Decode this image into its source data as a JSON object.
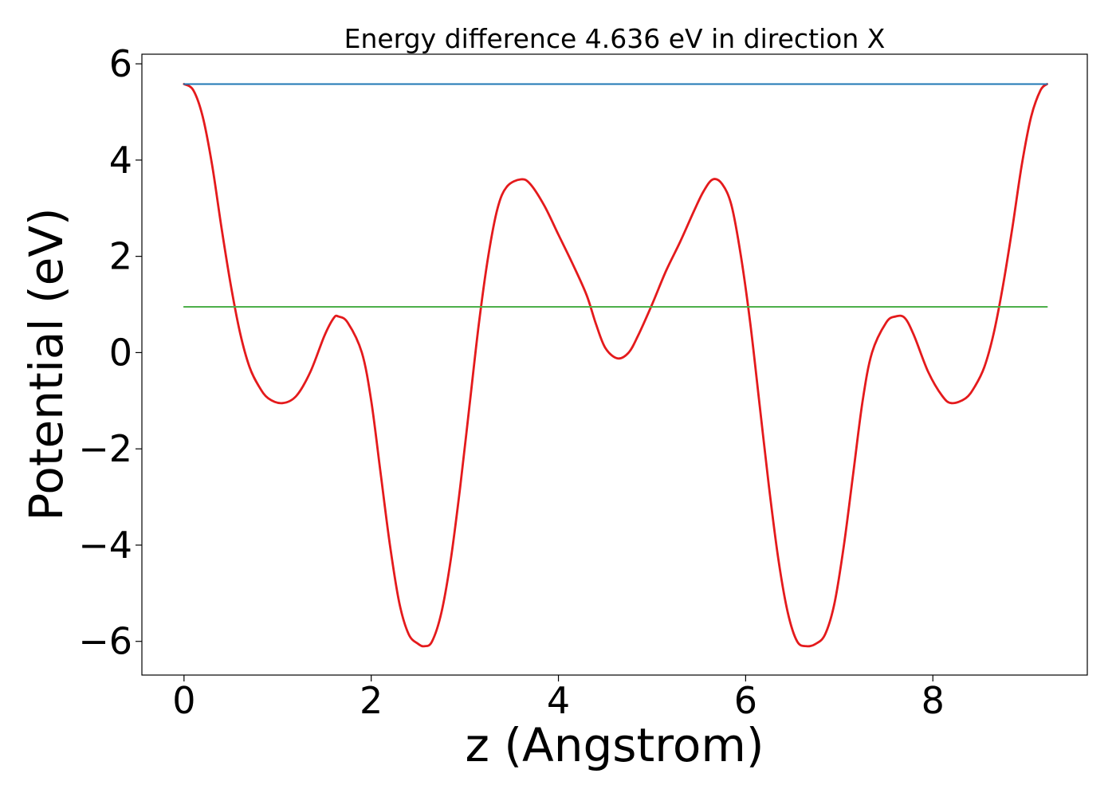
{
  "chart_data": {
    "type": "line",
    "title": "Energy difference 4.636 eV in direction X",
    "xlabel": "z (Angstrom)",
    "ylabel": "Potential (eV)",
    "xlim": [
      -0.45,
      9.65
    ],
    "ylim": [
      -6.7,
      6.2
    ],
    "xticks": [
      0,
      2,
      4,
      6,
      8
    ],
    "xtick_labels": [
      "0",
      "2",
      "4",
      "6",
      "8"
    ],
    "yticks": [
      -6,
      -4,
      -2,
      0,
      2,
      4,
      6
    ],
    "ytick_labels": [
      "−6",
      "−4",
      "−2",
      "0",
      "2",
      "4",
      "6"
    ],
    "grid": false,
    "legend": "none",
    "series": [
      {
        "color": "#e41a1c",
        "style": "curve",
        "points": [
          [
            0,
            5.58
          ],
          [
            0.1,
            5.45
          ],
          [
            0.2,
            4.9
          ],
          [
            0.3,
            3.9
          ],
          [
            0.4,
            2.6
          ],
          [
            0.5,
            1.4
          ],
          [
            0.6,
            0.4
          ],
          [
            0.7,
            -0.3
          ],
          [
            0.8,
            -0.7
          ],
          [
            0.9,
            -0.95
          ],
          [
            1.05,
            -1.05
          ],
          [
            1.2,
            -0.9
          ],
          [
            1.35,
            -0.4
          ],
          [
            1.5,
            0.35
          ],
          [
            1.6,
            0.72
          ],
          [
            1.65,
            0.75
          ],
          [
            1.75,
            0.62
          ],
          [
            1.9,
            0.0
          ],
          [
            2.0,
            -1.0
          ],
          [
            2.1,
            -2.5
          ],
          [
            2.2,
            -4.0
          ],
          [
            2.3,
            -5.2
          ],
          [
            2.4,
            -5.85
          ],
          [
            2.5,
            -6.05
          ],
          [
            2.57,
            -6.1
          ],
          [
            2.65,
            -6.0
          ],
          [
            2.75,
            -5.4
          ],
          [
            2.85,
            -4.3
          ],
          [
            2.95,
            -2.8
          ],
          [
            3.05,
            -1.1
          ],
          [
            3.15,
            0.6
          ],
          [
            3.25,
            2.0
          ],
          [
            3.35,
            3.0
          ],
          [
            3.45,
            3.45
          ],
          [
            3.6,
            3.6
          ],
          [
            3.7,
            3.5
          ],
          [
            3.85,
            3.05
          ],
          [
            4.0,
            2.45
          ],
          [
            4.15,
            1.85
          ],
          [
            4.3,
            1.2
          ],
          [
            4.4,
            0.6
          ],
          [
            4.5,
            0.1
          ],
          [
            4.63,
            -0.12
          ],
          [
            4.75,
            0.0
          ],
          [
            4.85,
            0.35
          ],
          [
            5.0,
            1.0
          ],
          [
            5.15,
            1.7
          ],
          [
            5.3,
            2.3
          ],
          [
            5.45,
            2.95
          ],
          [
            5.55,
            3.35
          ],
          [
            5.65,
            3.6
          ],
          [
            5.75,
            3.5
          ],
          [
            5.85,
            3.05
          ],
          [
            5.95,
            2.0
          ],
          [
            6.05,
            0.6
          ],
          [
            6.15,
            -1.1
          ],
          [
            6.25,
            -2.8
          ],
          [
            6.35,
            -4.3
          ],
          [
            6.45,
            -5.4
          ],
          [
            6.55,
            -6.0
          ],
          [
            6.65,
            -6.1
          ],
          [
            6.75,
            -6.05
          ],
          [
            6.85,
            -5.85
          ],
          [
            6.95,
            -5.2
          ],
          [
            7.05,
            -4.0
          ],
          [
            7.15,
            -2.5
          ],
          [
            7.25,
            -1.0
          ],
          [
            7.35,
            0.0
          ],
          [
            7.5,
            0.62
          ],
          [
            7.6,
            0.75
          ],
          [
            7.7,
            0.72
          ],
          [
            7.8,
            0.35
          ],
          [
            7.95,
            -0.4
          ],
          [
            8.1,
            -0.9
          ],
          [
            8.2,
            -1.05
          ],
          [
            8.35,
            -0.95
          ],
          [
            8.45,
            -0.7
          ],
          [
            8.55,
            -0.3
          ],
          [
            8.65,
            0.4
          ],
          [
            8.75,
            1.4
          ],
          [
            8.85,
            2.6
          ],
          [
            8.95,
            3.9
          ],
          [
            9.05,
            4.9
          ],
          [
            9.15,
            5.45
          ],
          [
            9.22,
            5.58
          ]
        ]
      },
      {
        "color": "#1f77b4",
        "style": "straight",
        "points": [
          [
            0,
            5.58
          ],
          [
            9.22,
            5.58
          ]
        ]
      },
      {
        "color": "#4daf4a",
        "style": "straight",
        "points": [
          [
            0,
            0.95
          ],
          [
            9.22,
            0.95
          ]
        ]
      }
    ]
  }
}
